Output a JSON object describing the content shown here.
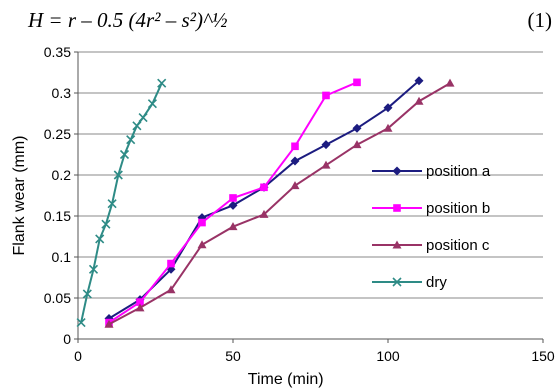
{
  "equation": {
    "text": "H = r – 0.5 (4r² – s²)^½",
    "number": "(1)"
  },
  "chart_data": {
    "type": "line",
    "title": "",
    "xlabel": "Time (min)",
    "ylabel": "Flank wear (mm)",
    "xlim": [
      0,
      150
    ],
    "ylim": [
      0,
      0.35
    ],
    "x_ticks": [
      "0",
      "50",
      "100",
      "150"
    ],
    "y_ticks": [
      "0",
      "0.05",
      "0.1",
      "0.15",
      "0.2",
      "0.25",
      "0.3",
      "0.35"
    ],
    "grid": "horizontal",
    "legend_position": "right",
    "series": [
      {
        "name": "position a",
        "color": "#1c1c80",
        "marker": "diamond",
        "x": [
          10,
          20,
          30,
          40,
          50,
          60,
          70,
          80,
          90,
          100,
          110
        ],
        "y": [
          0.025,
          0.048,
          0.085,
          0.148,
          0.163,
          0.185,
          0.217,
          0.237,
          0.257,
          0.282,
          0.315
        ]
      },
      {
        "name": "position b",
        "color": "#ff00ff",
        "marker": "square",
        "x": [
          10,
          20,
          30,
          40,
          50,
          60,
          70,
          80,
          90
        ],
        "y": [
          0.02,
          0.045,
          0.092,
          0.142,
          0.172,
          0.185,
          0.235,
          0.297,
          0.313
        ]
      },
      {
        "name": "position c",
        "color": "#993366",
        "marker": "triangle",
        "x": [
          10,
          20,
          30,
          40,
          50,
          60,
          70,
          80,
          90,
          100,
          110,
          120
        ],
        "y": [
          0.018,
          0.038,
          0.06,
          0.115,
          0.137,
          0.152,
          0.187,
          0.212,
          0.237,
          0.257,
          0.29,
          0.312
        ]
      },
      {
        "name": "dry",
        "color": "#2e8b86",
        "marker": "x",
        "x": [
          1,
          3,
          5,
          7,
          9,
          11,
          13,
          15,
          17,
          19,
          21,
          24,
          27
        ],
        "y": [
          0.02,
          0.055,
          0.085,
          0.122,
          0.14,
          0.165,
          0.2,
          0.225,
          0.243,
          0.26,
          0.27,
          0.287,
          0.312
        ]
      }
    ]
  }
}
